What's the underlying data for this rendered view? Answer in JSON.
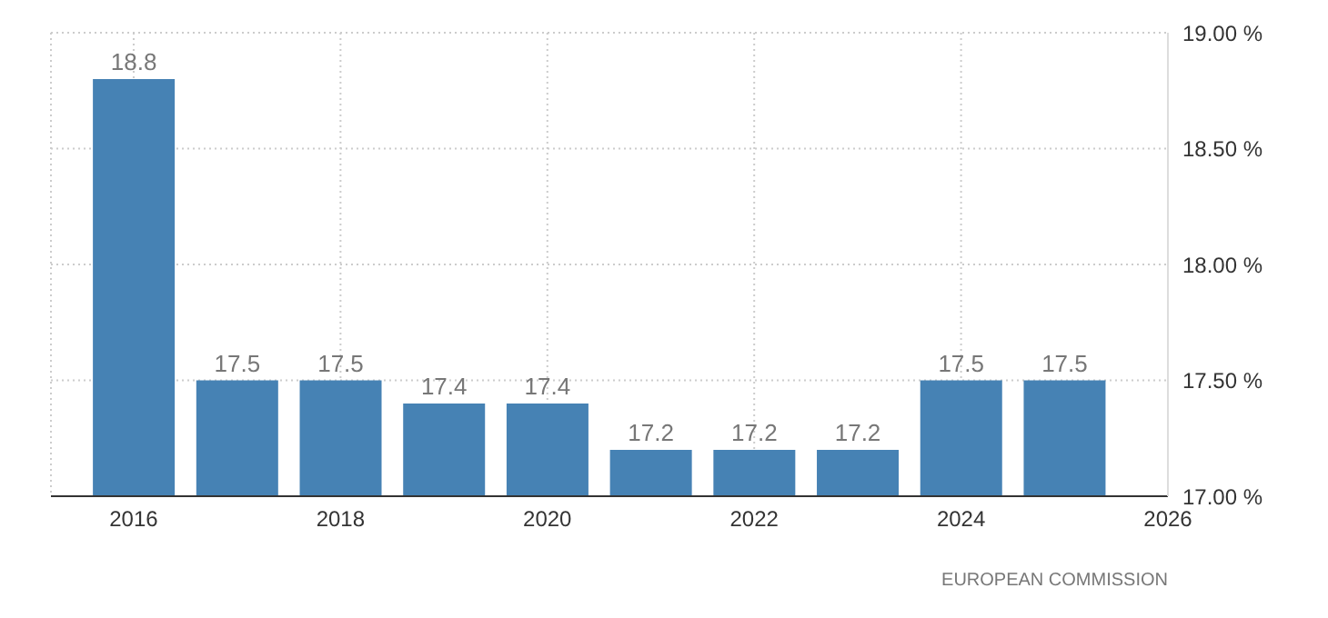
{
  "chart_data": {
    "type": "bar",
    "x": [
      2016,
      2017,
      2018,
      2019,
      2020,
      2021,
      2022,
      2023,
      2024,
      2025
    ],
    "values": [
      18.8,
      17.5,
      17.5,
      17.4,
      17.4,
      17.2,
      17.2,
      17.2,
      17.5,
      17.5
    ],
    "color": "#4682b4",
    "data_labels": true,
    "xlim": [
      2015.2,
      2026
    ],
    "xticks": [
      2016,
      2018,
      2020,
      2022,
      2024,
      2026
    ],
    "ylim": [
      17,
      19
    ],
    "yticks": [
      {
        "value": 17,
        "label": "17.00 %"
      },
      {
        "value": 17.5,
        "label": "17.50 %"
      },
      {
        "value": 18,
        "label": "18.00 %"
      },
      {
        "value": 18.5,
        "label": "18.50 %"
      },
      {
        "value": 19,
        "label": "19.00 %"
      }
    ],
    "grid": true,
    "annotations": [
      "EUROPEAN COMMISSION"
    ]
  }
}
